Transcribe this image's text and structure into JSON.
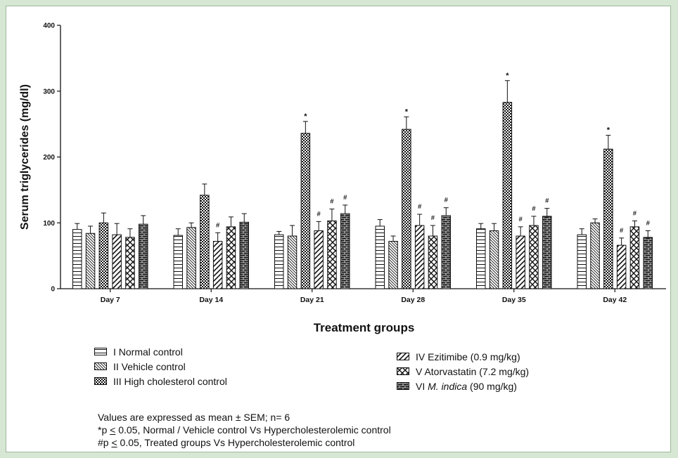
{
  "chart_data": {
    "type": "bar",
    "ylabel": "Serum triglycerides (mg/dl)",
    "xlabel": "Treatment groups",
    "ylim": [
      0,
      400
    ],
    "yticks": [
      0,
      100,
      200,
      300,
      400
    ],
    "grid": false,
    "legend_position": "bottom",
    "categories": [
      "Day 7",
      "Day 14",
      "Day 21",
      "Day 28",
      "Day 35",
      "Day 42"
    ],
    "series": [
      {
        "name": "I Normal control",
        "pattern": "horizontal",
        "values": [
          90,
          81,
          82,
          95,
          91,
          82
        ],
        "errors": [
          9,
          10,
          5,
          10,
          8,
          9
        ],
        "marks": [
          "",
          "",
          "",
          "",
          "",
          ""
        ]
      },
      {
        "name": "II Vehicle control",
        "pattern": "diagonal-back",
        "values": [
          84,
          93,
          80,
          72,
          88,
          100
        ],
        "errors": [
          11,
          7,
          16,
          8,
          11,
          6
        ],
        "marks": [
          "",
          "",
          "",
          "",
          "",
          ""
        ]
      },
      {
        "name": "III High cholesterol control",
        "pattern": "checker",
        "values": [
          100,
          142,
          236,
          242,
          283,
          212
        ],
        "errors": [
          15,
          17,
          18,
          19,
          33,
          21
        ],
        "marks": [
          "",
          "",
          "*",
          "*",
          "*",
          "*"
        ]
      },
      {
        "name": "IV Ezitimibe (0.9 mg/kg)",
        "pattern": "diagonal-fwd",
        "values": [
          82,
          72,
          88,
          96,
          80,
          66
        ],
        "errors": [
          17,
          13,
          14,
          17,
          14,
          11
        ],
        "marks": [
          "",
          "#",
          "#",
          "#",
          "#",
          "#"
        ]
      },
      {
        "name": "V Atorvastatin (7.2 mg/kg)",
        "pattern": "crosshatch",
        "values": [
          78,
          94,
          103,
          80,
          96,
          94
        ],
        "errors": [
          13,
          15,
          18,
          16,
          14,
          9
        ],
        "marks": [
          "",
          "",
          "#",
          "#",
          "#",
          "#"
        ]
      },
      {
        "name": "VI M. indica (90 mg/kg)",
        "pattern": "brick",
        "values": [
          98,
          101,
          114,
          111,
          110,
          78
        ],
        "errors": [
          13,
          13,
          13,
          12,
          12,
          10
        ],
        "marks": [
          "",
          "",
          "#",
          "#",
          "#",
          "#"
        ]
      }
    ]
  },
  "legend": {
    "left": [
      {
        "text": "I Normal control",
        "pattern": "horizontal"
      },
      {
        "text": "II Vehicle control",
        "pattern": "diagonal-back"
      },
      {
        "text": "III High cholesterol control",
        "pattern": "checker"
      }
    ],
    "right": [
      {
        "text": "IV Ezitimibe (0.9 mg/kg)",
        "pattern": "diagonal-fwd"
      },
      {
        "text": "V Atorvastatin (7.2 mg/kg)",
        "pattern": "crosshatch"
      },
      {
        "pre": "VI ",
        "italic": "M. indica",
        "post": " (90 mg/kg)",
        "pattern": "brick"
      }
    ]
  },
  "notes": {
    "line1": "Values are expressed as mean ± SEM; n= 6",
    "line2_pre": "*p ",
    "line2_sym": "<",
    "line2_post": " 0.05, Normal / Vehicle control Vs Hypercholesterolemic control",
    "line3_pre": "#p ",
    "line3_sym": "<",
    "line3_post": " 0.05, Treated groups Vs Hypercholesterolemic control"
  }
}
